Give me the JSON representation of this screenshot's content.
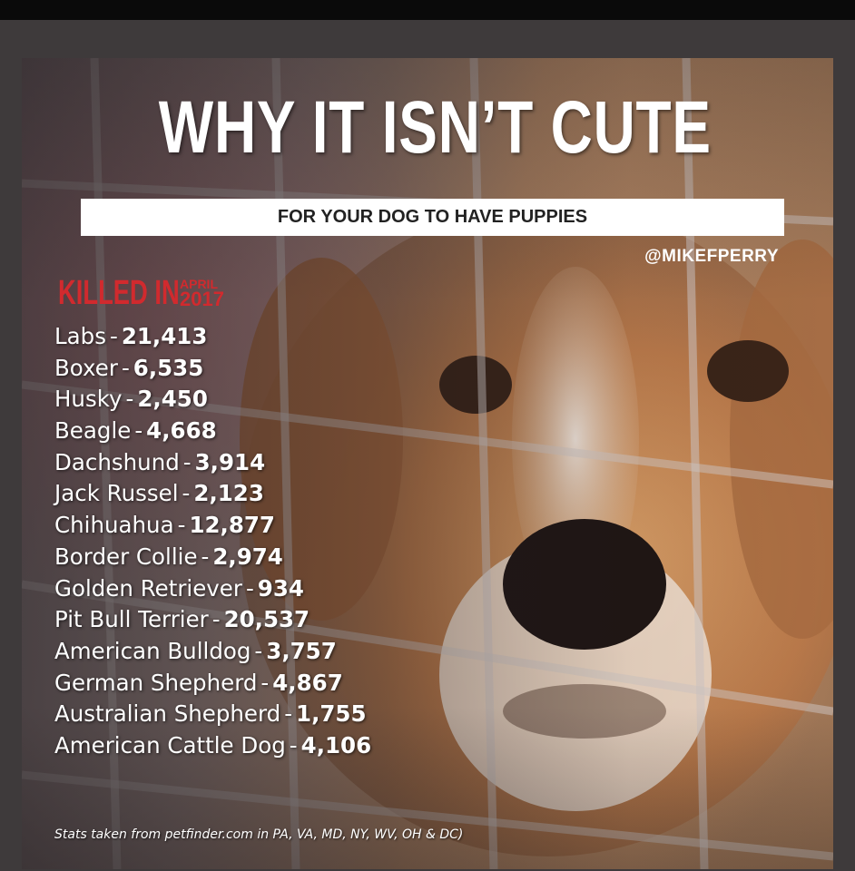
{
  "poster": {
    "title": "WHY IT ISN’T CUTE",
    "subtitle": "FOR YOUR DOG TO HAVE PUPPIES",
    "handle": "@MIKEFPERRY",
    "killed_label": "KILLED IN",
    "killed_month": "APRIL",
    "killed_year": "2017",
    "breeds": [
      {
        "name": "Labs",
        "count": "21,413"
      },
      {
        "name": "Boxer",
        "count": "6,535"
      },
      {
        "name": "Husky",
        "count": "2,450"
      },
      {
        "name": "Beagle",
        "count": "4,668"
      },
      {
        "name": "Dachshund",
        "count": "3,914"
      },
      {
        "name": "Jack Russel",
        "count": "2,123"
      },
      {
        "name": "Chihuahua",
        "count": "12,877"
      },
      {
        "name": "Border Collie",
        "count": "2,974"
      },
      {
        "name": "Golden Retriever",
        "count": "934"
      },
      {
        "name": "Pit Bull Terrier",
        "count": "20,537"
      },
      {
        "name": "American Bulldog",
        "count": "3,757"
      },
      {
        "name": "German Shepherd",
        "count": "4,867"
      },
      {
        "name": "Australian Shepherd",
        "count": "1,755"
      },
      {
        "name": "American Cattle Dog",
        "count": "4,106"
      }
    ],
    "separator": "-",
    "source": "Stats taken from petfinder.com in PA, VA, MD, NY, WV, OH & DC)",
    "colors": {
      "accent_red": "#d12a2e",
      "text_white": "#ffffff",
      "frame": "#3e3a3b"
    },
    "image_icon": "dog-behind-cage-photo"
  }
}
